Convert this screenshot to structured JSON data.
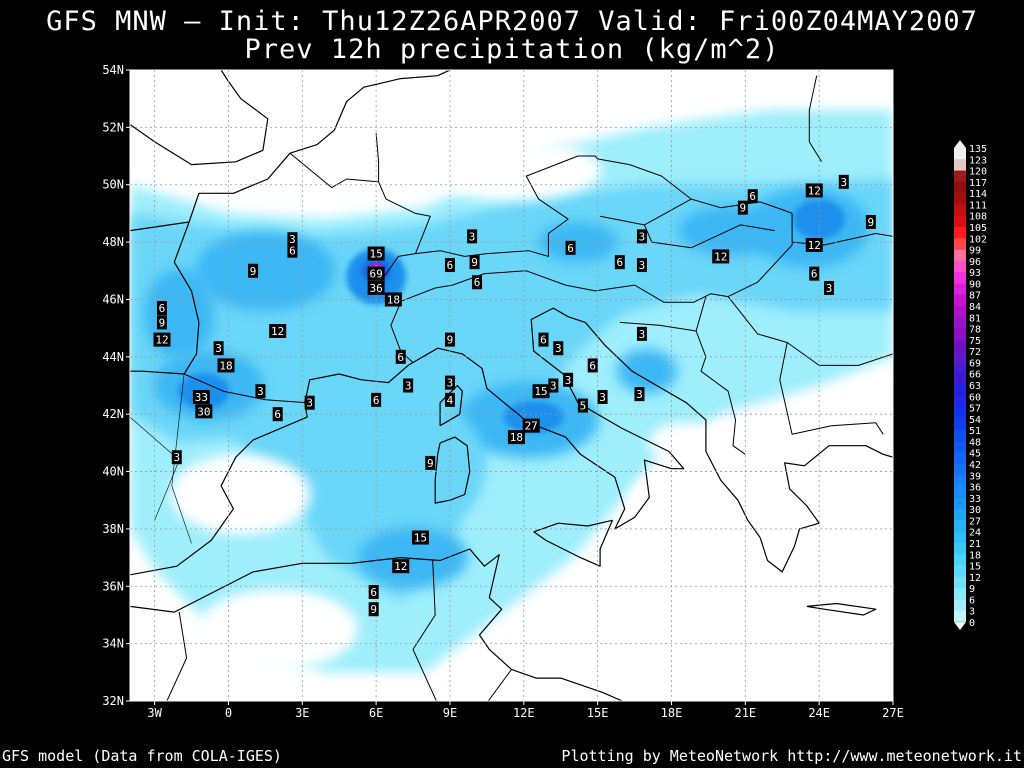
{
  "header": {
    "title": "GFS MNW — Init: Thu12Z26APR2007 Valid: Fri00Z04MAY2007",
    "subtitle": "Prev 12h precipitation (kg/m^2)"
  },
  "footer": {
    "source": "GFS model (Data from COLA-IGES)",
    "credit": "Plotting by MeteoNetwork http://www.meteonetwork.it"
  },
  "chart_data": {
    "type": "heatmap",
    "variable": "Prev 12h precipitation (kg/m^2)",
    "region": {
      "lon": [
        -4,
        27
      ],
      "lat": [
        32,
        54
      ]
    },
    "x_ticks": [
      "3W",
      "0",
      "3E",
      "6E",
      "9E",
      "12E",
      "15E",
      "18E",
      "21E",
      "24E",
      "27E"
    ],
    "x_tick_values": [
      -3,
      0,
      3,
      6,
      9,
      12,
      15,
      18,
      21,
      24,
      27
    ],
    "y_ticks": [
      "32N",
      "34N",
      "36N",
      "38N",
      "40N",
      "42N",
      "44N",
      "46N",
      "48N",
      "50N",
      "52N",
      "54N"
    ],
    "y_tick_values": [
      32,
      34,
      36,
      38,
      40,
      42,
      44,
      46,
      48,
      50,
      52,
      54
    ],
    "grid": true,
    "colorbar": {
      "placement": "right",
      "levels": [
        "135",
        "123",
        "120",
        "117",
        "114",
        "111",
        "108",
        "105",
        "102",
        "99",
        "96",
        "93",
        "90",
        "87",
        "84",
        "81",
        "78",
        "75",
        "72",
        "69",
        "66",
        "63",
        "60",
        "57",
        "54",
        "51",
        "48",
        "45",
        "42",
        "39",
        "36",
        "33",
        "30",
        "27",
        "24",
        "21",
        "18",
        "15",
        "12",
        "9",
        "6",
        "3",
        "0"
      ],
      "colors": [
        "#f0f0f0",
        "#e0c8c8",
        "#a01818",
        "#8c1010",
        "#a01010",
        "#c01010",
        "#dc1010",
        "#ff1c1c",
        "#ff4646",
        "#ff6fa0",
        "#ff50c8",
        "#f030e0",
        "#dc20d8",
        "#c810d0",
        "#b010c8",
        "#9a10c4",
        "#8a10c0",
        "#7010c4",
        "#6018c8",
        "#4a1cd0",
        "#3a1cd8",
        "#2820e0",
        "#1e28e6",
        "#1432ea",
        "#1040ee",
        "#104ef0",
        "#105cf2",
        "#1268f4",
        "#1474f4",
        "#1680f4",
        "#188cf4",
        "#1a98f4",
        "#20a6f6",
        "#28b2f8",
        "#30bef8",
        "#3ccafa",
        "#48d4fa",
        "#58dcfc",
        "#6ee4fc",
        "#86eafc",
        "#a0f0fe",
        "#c0f6fe",
        "#ffffff"
      ]
    },
    "labels": [
      {
        "lon": 6.0,
        "lat": 47.6,
        "value": "15"
      },
      {
        "lon": 6.0,
        "lat": 46.9,
        "value": "69"
      },
      {
        "lon": 6.0,
        "lat": 46.4,
        "value": "36"
      },
      {
        "lon": 6.7,
        "lat": 46.0,
        "value": "18"
      },
      {
        "lon": 2.6,
        "lat": 48.1,
        "value": "3"
      },
      {
        "lon": 2.6,
        "lat": 47.7,
        "value": "6"
      },
      {
        "lon": 1.0,
        "lat": 47.0,
        "value": "9"
      },
      {
        "lon": 2.0,
        "lat": 44.9,
        "value": "12"
      },
      {
        "lon": -2.7,
        "lat": 45.7,
        "value": "6"
      },
      {
        "lon": -2.7,
        "lat": 45.2,
        "value": "9"
      },
      {
        "lon": -2.7,
        "lat": 44.6,
        "value": "12"
      },
      {
        "lon": -0.4,
        "lat": 44.3,
        "value": "3"
      },
      {
        "lon": -0.1,
        "lat": 43.7,
        "value": "18"
      },
      {
        "lon": -1.1,
        "lat": 42.6,
        "value": "33"
      },
      {
        "lon": -1.0,
        "lat": 42.1,
        "value": "30"
      },
      {
        "lon": 1.3,
        "lat": 42.8,
        "value": "3"
      },
      {
        "lon": 2.0,
        "lat": 42.0,
        "value": "6"
      },
      {
        "lon": 3.3,
        "lat": 42.4,
        "value": "3"
      },
      {
        "lon": -2.1,
        "lat": 40.5,
        "value": "3"
      },
      {
        "lon": 6.0,
        "lat": 42.5,
        "value": "6"
      },
      {
        "lon": 7.3,
        "lat": 43.0,
        "value": "3"
      },
      {
        "lon": 7.0,
        "lat": 44.0,
        "value": "6"
      },
      {
        "lon": 9.0,
        "lat": 44.6,
        "value": "9"
      },
      {
        "lon": 9.0,
        "lat": 43.1,
        "value": "3"
      },
      {
        "lon": 9.0,
        "lat": 42.5,
        "value": "4"
      },
      {
        "lon": 8.2,
        "lat": 40.3,
        "value": "9"
      },
      {
        "lon": 7.8,
        "lat": 37.7,
        "value": "15"
      },
      {
        "lon": 7.0,
        "lat": 36.7,
        "value": "12"
      },
      {
        "lon": 5.9,
        "lat": 35.8,
        "value": "6"
      },
      {
        "lon": 5.9,
        "lat": 35.2,
        "value": "9"
      },
      {
        "lon": 12.3,
        "lat": 41.6,
        "value": "27"
      },
      {
        "lon": 11.7,
        "lat": 41.2,
        "value": "18"
      },
      {
        "lon": 12.7,
        "lat": 42.8,
        "value": "15"
      },
      {
        "lon": 13.2,
        "lat": 43.0,
        "value": "3"
      },
      {
        "lon": 13.8,
        "lat": 43.2,
        "value": "3"
      },
      {
        "lon": 12.8,
        "lat": 44.6,
        "value": "6"
      },
      {
        "lon": 13.4,
        "lat": 44.3,
        "value": "3"
      },
      {
        "lon": 14.8,
        "lat": 43.7,
        "value": "6"
      },
      {
        "lon": 14.4,
        "lat": 42.3,
        "value": "5"
      },
      {
        "lon": 15.2,
        "lat": 42.6,
        "value": "3"
      },
      {
        "lon": 16.7,
        "lat": 42.7,
        "value": "3"
      },
      {
        "lon": 16.8,
        "lat": 44.8,
        "value": "3"
      },
      {
        "lon": 9.9,
        "lat": 48.2,
        "value": "3"
      },
      {
        "lon": 9.0,
        "lat": 47.2,
        "value": "6"
      },
      {
        "lon": 10.0,
        "lat": 47.3,
        "value": "9"
      },
      {
        "lon": 10.1,
        "lat": 46.6,
        "value": "6"
      },
      {
        "lon": 13.9,
        "lat": 47.8,
        "value": "6"
      },
      {
        "lon": 15.9,
        "lat": 47.3,
        "value": "6"
      },
      {
        "lon": 16.8,
        "lat": 47.2,
        "value": "3"
      },
      {
        "lon": 16.8,
        "lat": 48.2,
        "value": "3"
      },
      {
        "lon": 20.9,
        "lat": 49.2,
        "value": "9"
      },
      {
        "lon": 21.3,
        "lat": 49.6,
        "value": "6"
      },
      {
        "lon": 20.0,
        "lat": 47.5,
        "value": "12"
      },
      {
        "lon": 23.8,
        "lat": 49.8,
        "value": "12"
      },
      {
        "lon": 25.0,
        "lat": 50.1,
        "value": "3"
      },
      {
        "lon": 23.8,
        "lat": 47.9,
        "value": "12"
      },
      {
        "lon": 26.1,
        "lat": 48.7,
        "value": "9"
      },
      {
        "lon": 23.8,
        "lat": 46.9,
        "value": "6"
      },
      {
        "lon": 24.4,
        "lat": 46.4,
        "value": "3"
      }
    ]
  }
}
